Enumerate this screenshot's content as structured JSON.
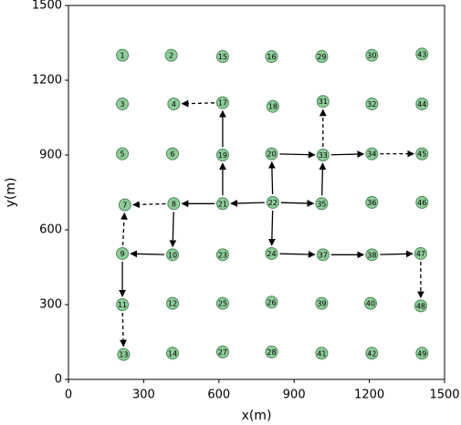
{
  "chart_data": {
    "type": "scatter",
    "xlabel": "x(m)",
    "ylabel": "y(m)",
    "xlim": [
      0,
      1500
    ],
    "ylim": [
      0,
      1500
    ],
    "xticks": [
      0,
      300,
      600,
      900,
      1200,
      1500
    ],
    "yticks": [
      0,
      300,
      600,
      900,
      1200,
      1500
    ],
    "color": "#8fcc9a",
    "edge_color": "#4e8a5c",
    "labels": [
      "1",
      "2",
      "3",
      "4",
      "5",
      "6",
      "7",
      "8",
      "9",
      "10",
      "11",
      "12",
      "13",
      "14",
      "15",
      "16",
      "17",
      "18",
      "19",
      "20",
      "21",
      "22",
      "23",
      "24",
      "25",
      "26",
      "27",
      "28",
      "29",
      "30",
      "31",
      "32",
      "33",
      "34",
      "35",
      "36",
      "37",
      "38",
      "39",
      "40",
      "41",
      "42",
      "43",
      "44",
      "45",
      "46",
      "47",
      "48",
      "49"
    ],
    "x": [
      215,
      410,
      215,
      420,
      215,
      415,
      225,
      420,
      215,
      415,
      215,
      415,
      220,
      415,
      615,
      810,
      615,
      815,
      615,
      810,
      615,
      815,
      615,
      810,
      615,
      810,
      615,
      810,
      1010,
      1210,
      1015,
      1210,
      1015,
      1210,
      1010,
      1210,
      1015,
      1210,
      1010,
      1205,
      1010,
      1210,
      1410,
      1410,
      1410,
      1410,
      1405,
      1405,
      1410
    ],
    "y": [
      1300,
      1300,
      1105,
      1105,
      905,
      905,
      700,
      705,
      505,
      500,
      300,
      305,
      100,
      105,
      1295,
      1295,
      1110,
      1095,
      900,
      905,
      705,
      710,
      500,
      505,
      305,
      310,
      110,
      110,
      1295,
      1300,
      1115,
      1105,
      900,
      905,
      705,
      710,
      500,
      500,
      305,
      305,
      105,
      105,
      1305,
      1105,
      905,
      710,
      505,
      295,
      105
    ]
  }
}
